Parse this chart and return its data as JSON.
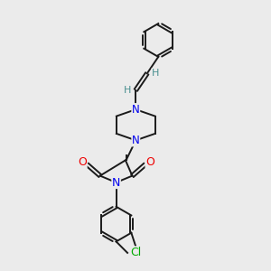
{
  "bg_color": "#ebebeb",
  "bond_color": "#1a1a1a",
  "N_color": "#0000ee",
  "O_color": "#ee0000",
  "Cl_color": "#00aa00",
  "H_color": "#4a9090",
  "line_width": 1.4,
  "font_size": 8.5,
  "figsize": [
    3.0,
    3.0
  ],
  "dpi": 100,
  "xlim": [
    0,
    10
  ],
  "ylim": [
    0,
    10
  ]
}
